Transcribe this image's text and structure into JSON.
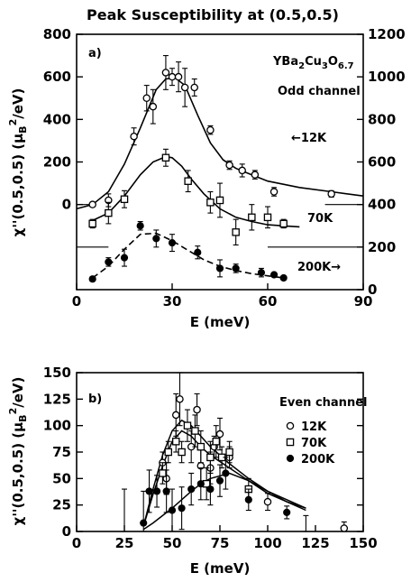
{
  "figure": {
    "title": "Peak Susceptibility at (0.5,0.5)"
  },
  "chart_data": [
    {
      "type": "scatter",
      "panel_label": "a)",
      "compound": "YBa2Cu3O6.7",
      "compound_parts": [
        "YBa",
        "2",
        "Cu",
        "3",
        "O",
        "6.7"
      ],
      "channel_label": "Odd channel",
      "xlabel": "E (meV)",
      "ylabel_left": "χ''(0.5,0.5)",
      "ylabel_unit_open": "(μ",
      "ylabel_unit_sub": "B",
      "ylabel_unit_sup": "2",
      "ylabel_unit_close": "/eV)",
      "xlim": [
        0,
        90
      ],
      "ylim_left": [
        -400,
        800
      ],
      "ylim_right": [
        0,
        1200
      ],
      "xticks": [
        "0",
        "30",
        "60",
        "90"
      ],
      "xtick_values": [
        0,
        30,
        60,
        90
      ],
      "yticks_left": [
        "0",
        "200",
        "400",
        "600",
        "800"
      ],
      "ytick_left_values": [
        0,
        200,
        400,
        600,
        800
      ],
      "yticks_right": [
        "0",
        "200",
        "400",
        "600",
        "800",
        "1000",
        "1200"
      ],
      "ytick_right_values": [
        0,
        200,
        400,
        600,
        800,
        1000,
        1200
      ],
      "series": [
        {
          "name": "12K",
          "label": "←12K",
          "marker": "circle-open",
          "x": [
            5,
            10,
            18,
            22,
            24,
            28,
            30,
            32,
            34,
            37,
            42,
            48,
            52,
            56,
            62,
            80
          ],
          "y": [
            0,
            20,
            320,
            500,
            460,
            620,
            600,
            600,
            550,
            550,
            350,
            185,
            160,
            140,
            60,
            50
          ],
          "err": [
            10,
            30,
            40,
            60,
            80,
            80,
            40,
            70,
            90,
            40,
            20,
            20,
            30,
            20,
            20,
            15
          ],
          "fit_x": [
            0,
            5,
            10,
            15,
            20,
            25,
            28,
            31,
            34,
            38,
            42,
            46,
            50,
            55,
            60,
            70,
            80,
            90
          ],
          "fit_y": [
            -20,
            0,
            60,
            190,
            360,
            540,
            590,
            595,
            560,
            420,
            290,
            210,
            170,
            140,
            110,
            80,
            60,
            40
          ]
        },
        {
          "name": "70K",
          "label": "70K",
          "marker": "square-open",
          "x": [
            5,
            10,
            15,
            28,
            35,
            42,
            45,
            50,
            55,
            60,
            65
          ],
          "y": [
            -90,
            -40,
            25,
            220,
            110,
            10,
            20,
            -130,
            -60,
            -60,
            -90
          ],
          "err": [
            20,
            50,
            40,
            40,
            50,
            50,
            80,
            60,
            60,
            50,
            20
          ],
          "fit_x": [
            5,
            10,
            15,
            20,
            24,
            28,
            30,
            33,
            36,
            40,
            45,
            50,
            55,
            60,
            65,
            70
          ],
          "fit_y": [
            -75,
            -40,
            40,
            140,
            200,
            225,
            220,
            180,
            120,
            50,
            -20,
            -60,
            -80,
            -95,
            -100,
            -105
          ]
        },
        {
          "name": "200K",
          "label": "200K→",
          "marker": "circle-filled",
          "x": [
            5,
            10,
            15,
            20,
            25,
            30,
            38,
            45,
            50,
            58,
            62,
            65
          ],
          "y": [
            -350,
            -270,
            -250,
            -100,
            -160,
            -180,
            -225,
            -300,
            -300,
            -320,
            -330,
            -345
          ],
          "err": [
            10,
            20,
            40,
            20,
            40,
            40,
            30,
            40,
            20,
            20,
            10,
            10
          ],
          "fit_x": [
            5,
            10,
            15,
            20,
            25,
            30,
            35,
            40,
            45,
            50,
            55,
            60,
            65
          ],
          "fit_y": [
            -345,
            -290,
            -210,
            -140,
            -135,
            -170,
            -215,
            -260,
            -290,
            -310,
            -325,
            -335,
            -345
          ]
        }
      ],
      "baselines": [
        {
          "series": "12K",
          "x": [
            0,
            5
          ],
          "y": [
            0,
            0
          ]
        },
        {
          "series": "12K",
          "x": [
            78,
            90
          ],
          "y": [
            0,
            0
          ]
        },
        {
          "series": "70K",
          "x": [
            0,
            10
          ],
          "y": [
            -200,
            -200
          ]
        },
        {
          "series": "70K",
          "x": [
            60,
            90
          ],
          "y": [
            -200,
            -200
          ]
        }
      ]
    },
    {
      "type": "scatter",
      "panel_label": "b)",
      "channel_label": "Even channel",
      "xlabel": "E (meV)",
      "ylabel_left": "χ''(0.5,0.5)",
      "ylabel_unit_open": "(μ",
      "ylabel_unit_sub": "B",
      "ylabel_unit_sup": "2",
      "ylabel_unit_close": "/eV)",
      "xlim": [
        0,
        150
      ],
      "ylim": [
        0,
        150
      ],
      "xticks": [
        "0",
        "25",
        "50",
        "75",
        "100",
        "125",
        "150"
      ],
      "xtick_values": [
        0,
        25,
        50,
        75,
        100,
        125,
        150
      ],
      "yticks": [
        "0",
        "25",
        "50",
        "75",
        "100",
        "125",
        "150"
      ],
      "ytick_values": [
        0,
        25,
        50,
        75,
        100,
        125,
        150
      ],
      "legend": [
        {
          "label": "12K",
          "marker": "circle-open"
        },
        {
          "label": "70K",
          "marker": "square-open"
        },
        {
          "label": "200K",
          "marker": "circle-filled"
        }
      ],
      "series": [
        {
          "name": "12K",
          "marker": "circle-open",
          "x": [
            45,
            47,
            52,
            54,
            60,
            63,
            65,
            70,
            72,
            75,
            80,
            100,
            140
          ],
          "y": [
            65,
            50,
            110,
            125,
            80,
            115,
            62,
            60,
            80,
            92,
            70,
            28,
            3
          ],
          "err": [
            10,
            15,
            20,
            25,
            15,
            15,
            15,
            15,
            10,
            15,
            10,
            8,
            6
          ],
          "fit_x": [
            35,
            40,
            45,
            50,
            55,
            60,
            65,
            70,
            80,
            90,
            100,
            110,
            120
          ],
          "fit_y": [
            5,
            40,
            72,
            95,
            105,
            100,
            90,
            80,
            64,
            50,
            38,
            28,
            20
          ]
        },
        {
          "name": "70K",
          "marker": "square-open",
          "x": [
            45,
            48,
            52,
            55,
            58,
            62,
            65,
            68,
            70,
            73,
            76,
            80,
            90
          ],
          "y": [
            55,
            75,
            85,
            75,
            100,
            95,
            80,
            45,
            70,
            85,
            70,
            75,
            40
          ],
          "err": [
            10,
            10,
            10,
            10,
            15,
            15,
            15,
            15,
            15,
            15,
            10,
            10,
            10
          ],
          "fit_x": [
            35,
            40,
            45,
            50,
            55,
            60,
            65,
            70,
            80,
            90,
            100,
            110,
            120
          ],
          "fit_y": [
            5,
            35,
            62,
            85,
            95,
            90,
            80,
            72,
            60,
            48,
            36,
            28,
            22
          ]
        },
        {
          "name": "200K",
          "marker": "circle-filled",
          "x": [
            35,
            38,
            42,
            47,
            50,
            55,
            60,
            65,
            70,
            75,
            78,
            90,
            110
          ],
          "y": [
            8,
            38,
            38,
            38,
            20,
            22,
            40,
            45,
            40,
            48,
            55,
            30,
            18
          ],
          "err": [
            30,
            20,
            15,
            20,
            20,
            20,
            15,
            15,
            15,
            15,
            15,
            10,
            6
          ],
          "fit_x": [
            35,
            40,
            45,
            50,
            55,
            60,
            65,
            70,
            80,
            90,
            100,
            110,
            120
          ],
          "fit_y": [
            2,
            8,
            15,
            22,
            30,
            38,
            45,
            50,
            55,
            48,
            38,
            30,
            22
          ]
        }
      ],
      "extra_errorbars": [
        {
          "x": 25,
          "y": 40,
          "lo": 0,
          "hi": 40
        },
        {
          "x": 120,
          "y": 5,
          "lo": 0,
          "hi": 15
        }
      ]
    }
  ]
}
